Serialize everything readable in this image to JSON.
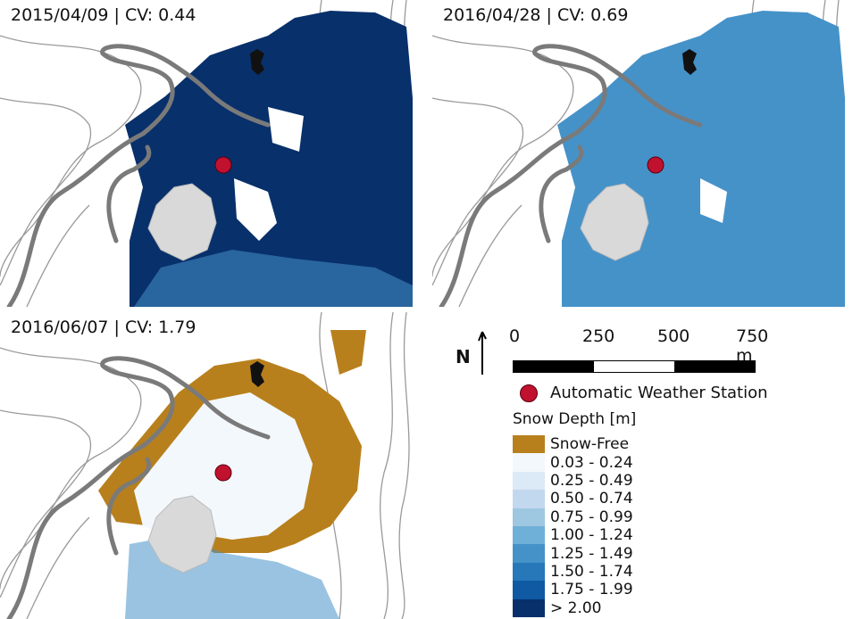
{
  "panels": [
    {
      "title": "2015/04/09 | CV: 0.44",
      "dominant_class": "> 2.00"
    },
    {
      "title": "2016/04/28 | CV: 0.69",
      "dominant_class": "1.25 - 1.49"
    },
    {
      "title": "2016/06/07 | CV: 1.79",
      "dominant_class": "0.03 - 0.24"
    }
  ],
  "north": {
    "label": "N"
  },
  "scale": {
    "labels": [
      "0",
      "250",
      "500",
      "750 m"
    ],
    "segments": [
      "black",
      "white",
      "black"
    ]
  },
  "station": {
    "label": "Automatic Weather Station",
    "color": "#c0112e"
  },
  "legend": {
    "title": "Snow Depth [m]",
    "items": [
      {
        "label": "Snow-Free",
        "color": "#b8801c"
      },
      {
        "label": "0.03 - 0.24",
        "color": "#f3f8fd"
      },
      {
        "label": "0.25 - 0.49",
        "color": "#dce9f6"
      },
      {
        "label": "0.50 - 0.74",
        "color": "#c2d8ee"
      },
      {
        "label": "0.75 - 0.99",
        "color": "#9ec7e2"
      },
      {
        "label": "1.00 - 1.24",
        "color": "#6fb0d8"
      },
      {
        "label": "1.25 - 1.49",
        "color": "#4592c9"
      },
      {
        "label": "1.50 - 1.74",
        "color": "#2678b8"
      },
      {
        "label": "1.75 - 1.99",
        "color": "#0f5aa2"
      },
      {
        "label": "> 2.00",
        "color": "#08306b"
      }
    ]
  },
  "colors": {
    "lake": "#d9d9d9",
    "road": "#7a7a7a",
    "contour": "#9a9a9a",
    "building": "#111111"
  }
}
